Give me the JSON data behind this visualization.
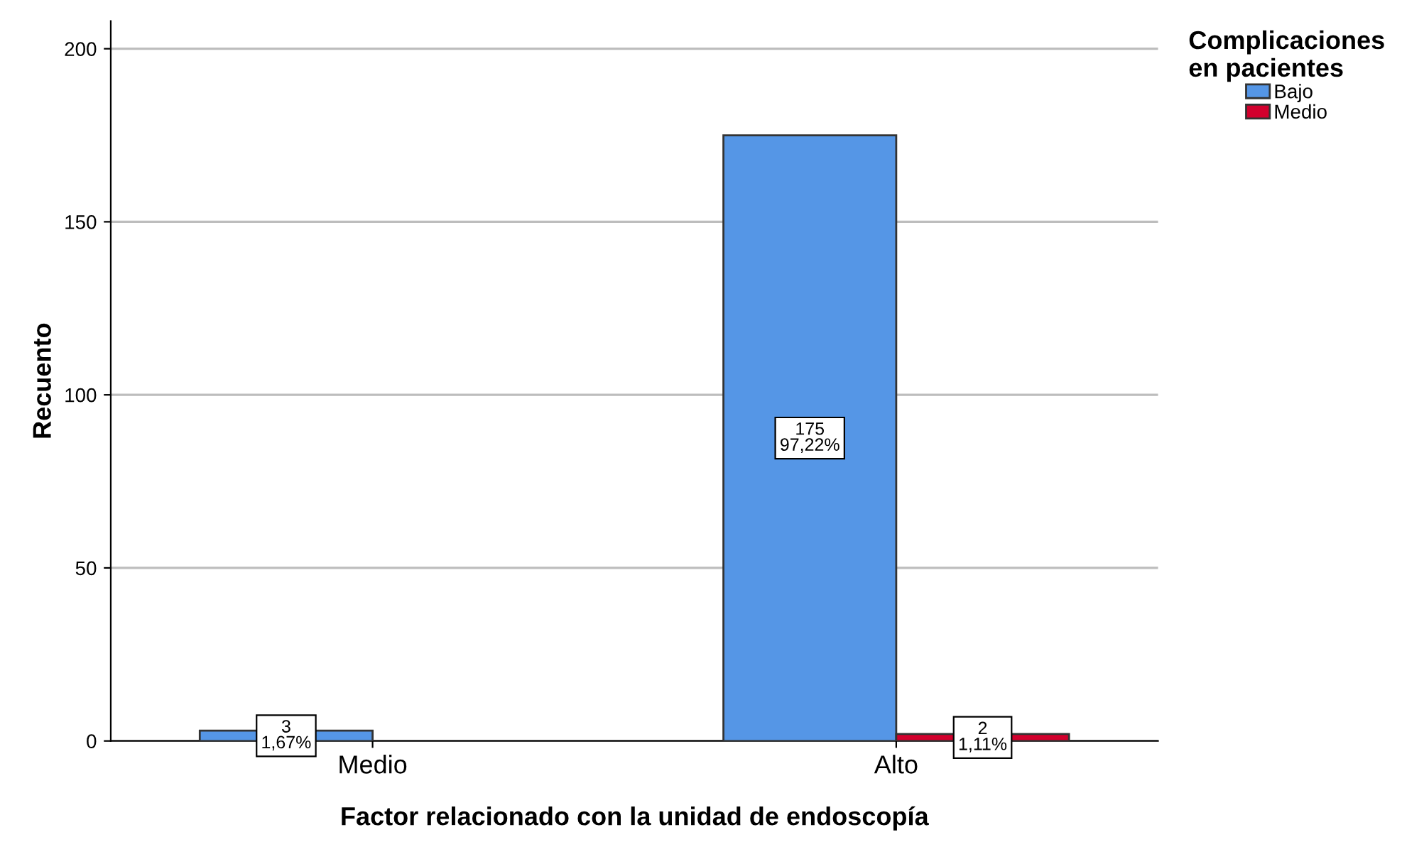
{
  "chart_data": {
    "type": "bar",
    "xlabel": "Factor relacionado con la unidad de endoscopía",
    "ylabel": "Recuento",
    "legend_title": "Complicaciones\nen pacientes",
    "categories": [
      "Medio",
      "Alto"
    ],
    "series": [
      {
        "name": "Bajo",
        "color": "#5596e6",
        "values": [
          3,
          175
        ],
        "value_labels": [
          "3\n1,67%",
          "175\n97,22%"
        ]
      },
      {
        "name": "Medio",
        "color": "#d2002d",
        "values": [
          null,
          2
        ],
        "value_labels": [
          null,
          "2\n1,11%"
        ]
      }
    ],
    "ylim": [
      0,
      208
    ],
    "yticks": [
      0,
      50,
      100,
      150,
      200
    ],
    "grid": "y",
    "legend": "top right"
  }
}
